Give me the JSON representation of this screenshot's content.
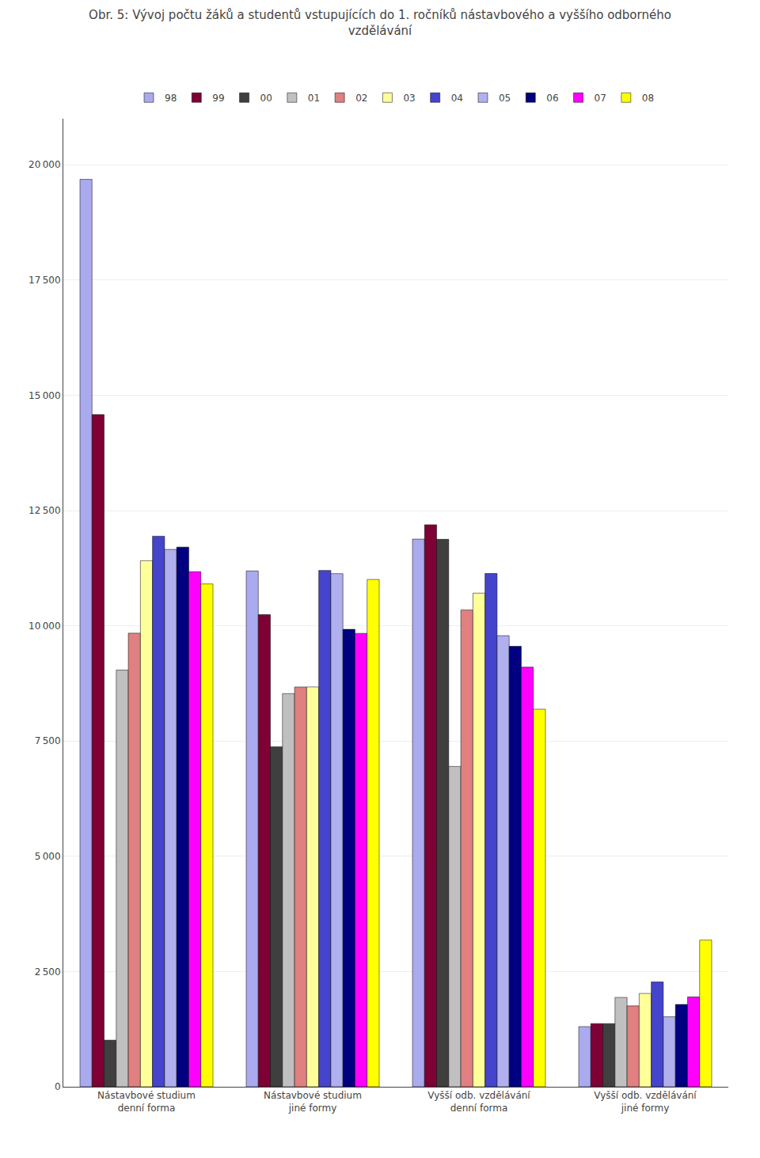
{
  "chart_data": {
    "type": "bar",
    "title": "Obr. 5: Vývoj počtu žáků a studentů vstupujících do 1. ročníků nástavbového a vyššího odborného\nvzdělávání",
    "categories": [
      "Nástavbové studium\ndenní forma",
      "Nástavbové studium\njiné formy",
      "Vyšší odb. vzdělávání\ndenní forma",
      "Vyšší odb. vzdělávání\njiné formy"
    ],
    "series": [
      {
        "name": "98",
        "color": "#aaaaee",
        "values": [
          19685,
          11189,
          11881,
          1305
        ]
      },
      {
        "name": "99",
        "color": "#7f0035",
        "values": [
          14581,
          10242,
          12192,
          1371
        ]
      },
      {
        "name": "00",
        "color": "#3f3f3f",
        "values": [
          1011,
          7377,
          11876,
          1369
        ]
      },
      {
        "name": "01",
        "color": "#c0c0c0",
        "values": [
          9039,
          8529,
          6949,
          1938
        ]
      },
      {
        "name": "02",
        "color": "#e08080",
        "values": [
          9841,
          8673,
          10343,
          1754
        ]
      },
      {
        "name": "03",
        "color": "#ffff99",
        "values": [
          11412,
          8673,
          10709,
          2024
        ]
      },
      {
        "name": "04",
        "color": "#4444cc",
        "values": [
          11944,
          11201,
          11135,
          2273
        ]
      },
      {
        "name": "05",
        "color": "#b0b0ee",
        "values": [
          11657,
          11132,
          9786,
          1518
        ]
      },
      {
        "name": "06",
        "color": "#000080",
        "values": [
          11708,
          9923,
          9555,
          1786
        ]
      },
      {
        "name": "07",
        "color": "#ff00ff",
        "values": [
          11174,
          9836,
          9103,
          1949
        ]
      },
      {
        "name": "08",
        "color": "#ffff00",
        "values": [
          10908,
          11005,
          8191,
          3182
        ]
      }
    ],
    "ylim": [
      0,
      21000
    ],
    "yticks": [
      0,
      {
        "value": 2500,
        "label": "2 500"
      },
      {
        "value": 5000,
        "label": "5 000"
      },
      {
        "value": 7500,
        "label": "7 500"
      },
      {
        "value": 10000,
        "label": "10 000"
      },
      {
        "value": 12500,
        "label": "12 500"
      },
      {
        "value": 15000,
        "label": "15 000"
      },
      {
        "value": 17500,
        "label": "17 500"
      },
      {
        "value": 20000,
        "label": "20 000"
      }
    ],
    "grid": true,
    "legend": "top"
  }
}
